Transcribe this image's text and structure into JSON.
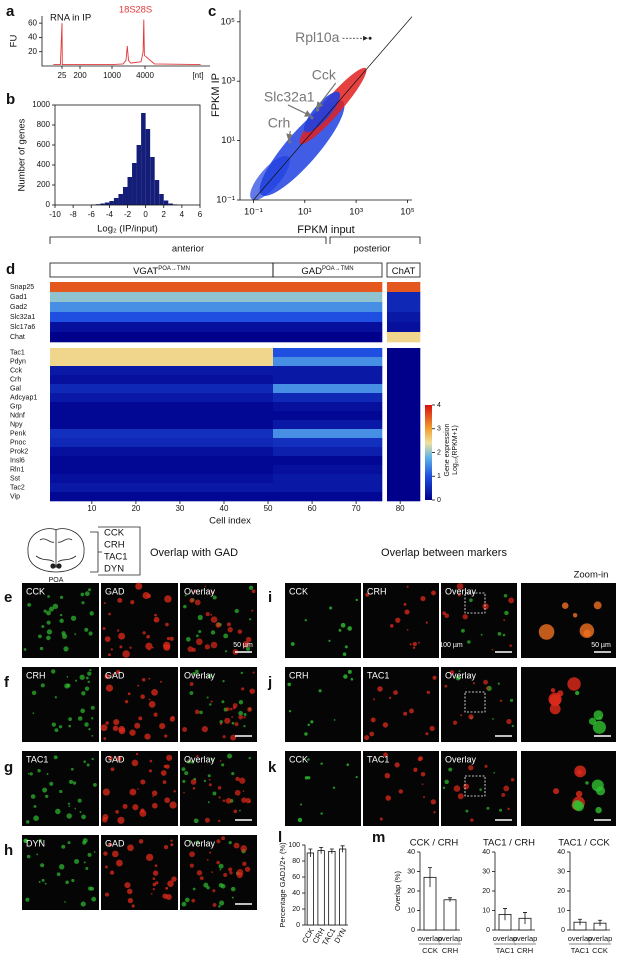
{
  "panel_labels": [
    "a",
    "b",
    "c",
    "d",
    "e",
    "f",
    "g",
    "h",
    "i",
    "j",
    "k",
    "l",
    "m"
  ],
  "chart_data": [
    {
      "type": "electropherogram",
      "title": "RNA in IP",
      "ylabel": "FU",
      "xunit": "[nt]",
      "color": "#e03a3a",
      "x": [
        20,
        24,
        25,
        26,
        30,
        200,
        1000,
        1600,
        1800,
        1900,
        2000,
        2200,
        3400,
        3700,
        3800,
        3900,
        4500,
        8000
      ],
      "values": [
        2,
        2,
        60,
        2,
        2,
        2,
        2,
        3,
        8,
        28,
        8,
        4,
        6,
        20,
        65,
        15,
        3,
        2
      ],
      "ylim": [
        0,
        70
      ],
      "yticks": [
        20,
        40,
        60
      ],
      "xlim": [
        15,
        9000
      ],
      "xticks": [
        25,
        200,
        1000,
        4000
      ],
      "peaks": [
        {
          "label": "18S",
          "x": 1900
        },
        {
          "label": "28S",
          "x": 3800
        }
      ]
    },
    {
      "type": "histogram",
      "ylabel": "Number of genes",
      "xlabel": "Log₂ (IP/input)",
      "color": "#141e78",
      "bins": [
        -6,
        -5.5,
        -5,
        -4.5,
        -4,
        -3.5,
        -3,
        -2.5,
        -2,
        -1.5,
        -1,
        -0.5,
        0,
        0.5,
        1,
        1.5,
        2,
        2.5,
        3,
        3.5,
        4
      ],
      "counts": [
        5,
        8,
        15,
        25,
        40,
        70,
        110,
        180,
        280,
        420,
        600,
        920,
        760,
        480,
        250,
        110,
        45,
        15,
        6,
        2
      ],
      "xlim": [
        -10,
        6
      ],
      "xticks": [
        -10,
        -8,
        -6,
        -4,
        -2,
        0,
        2,
        4,
        6
      ],
      "ylim": [
        0,
        1000
      ],
      "yticks": [
        0,
        200,
        400,
        600,
        800,
        1000
      ]
    },
    {
      "type": "scatter",
      "xlabel": "FPKM input",
      "ylabel": "FPKM IP",
      "xscale": "log",
      "yscale": "log",
      "diagonal": true,
      "xlim": [
        0.03,
        150000
      ],
      "ylim": [
        0.1,
        250000
      ],
      "xticks": [
        {
          "value": 0.1,
          "label": "10⁻¹"
        },
        {
          "value": 10,
          "label": "10¹"
        },
        {
          "value": 1000,
          "label": "10³"
        },
        {
          "value": 100000,
          "label": "10⁵"
        }
      ],
      "yticks": [
        {
          "value": 0.1,
          "label": "10⁻¹"
        },
        {
          "value": 10,
          "label": "10¹"
        },
        {
          "value": 1000,
          "label": "10³"
        },
        {
          "value": 100000,
          "label": "10⁵"
        }
      ],
      "points": [
        {
          "label": "Rpl10a",
          "x": 3500,
          "y": 28000
        },
        {
          "label": "Cck",
          "x": 32,
          "y": 107
        },
        {
          "label": "Slc32a1",
          "x": 19,
          "y": 58
        },
        {
          "label": "Crh",
          "x": 2.6,
          "y": 9
        }
      ]
    },
    {
      "type": "heatmap",
      "xlabel": "Cell index",
      "regions": [
        "anterior",
        "posterior"
      ],
      "groups": [
        {
          "name": "VGAT",
          "sup": "POA→TMN"
        },
        {
          "name": "GAD",
          "sup": "POA→TMN"
        },
        {
          "name": "ChAT"
        }
      ],
      "rows": [
        "Snap25",
        "Gad1",
        "Gad2",
        "Slc32a1",
        "Slc17a6",
        "Chat",
        "Tac1",
        "Pdyn",
        "Cck",
        "Crh",
        "Gal",
        "Adcyap1",
        "Grp",
        "Ndnf",
        "Npy",
        "Penk",
        "Pnoc",
        "Prok2",
        "Insl6",
        "Rln1",
        "Sst",
        "Tac2",
        "Vip"
      ],
      "values": [
        [
          3.5,
          3.5,
          3.5
        ],
        [
          2,
          2,
          0.5
        ],
        [
          1.5,
          1.5,
          0.5
        ],
        [
          1,
          1,
          0.3
        ],
        [
          0.2,
          0.2,
          0.2
        ],
        [
          0,
          0,
          2.5
        ],
        [
          2.5,
          1,
          0
        ],
        [
          2.5,
          1.5,
          0
        ],
        [
          0.3,
          0.3,
          0
        ],
        [
          0.2,
          0.3,
          0
        ],
        [
          0.5,
          1.5,
          0
        ],
        [
          0.3,
          0.5,
          0
        ],
        [
          0.1,
          0.2,
          0
        ],
        [
          0.1,
          0.1,
          0
        ],
        [
          0.1,
          0.3,
          0
        ],
        [
          0.6,
          1.5,
          0
        ],
        [
          0.5,
          0.6,
          0
        ],
        [
          0.2,
          0.4,
          0
        ],
        [
          0.1,
          0.1,
          0
        ],
        [
          0.1,
          0.2,
          0
        ],
        [
          0.2,
          0.3,
          0
        ],
        [
          0.3,
          0.3,
          0
        ],
        [
          0.1,
          0.1,
          0
        ]
      ],
      "xlim": [
        0.5,
        84.5
      ],
      "xticks": [
        10,
        20,
        30,
        40,
        50,
        60,
        70,
        80
      ],
      "clim": [
        0,
        4
      ],
      "cticks": [
        0,
        1,
        2,
        3,
        4
      ],
      "clabel": "Gene expression",
      "clabel2": "Log₁₀(RPKM+1)"
    },
    {
      "type": "bar",
      "ylabel": "Percentage GAD1/2+ (%)",
      "categories": [
        "CCK",
        "CRH",
        "TAC1",
        "DYN"
      ],
      "values": [
        90,
        93,
        92,
        95
      ],
      "errors": [
        5,
        4,
        3,
        4
      ],
      "ylim": [
        0,
        100
      ],
      "yticks": [
        0,
        20,
        40,
        60,
        80,
        100
      ]
    },
    {
      "type": "bar",
      "title": "CCK / CRH",
      "ylabel": "Overlap (%)",
      "category_note": "overlap",
      "categories": [
        "CCK",
        "CRH"
      ],
      "values": [
        27,
        15.5
      ],
      "errors": [
        5,
        1
      ],
      "ylim": [
        0,
        40
      ],
      "yticks": [
        0,
        10,
        20,
        30,
        40
      ]
    },
    {
      "type": "bar",
      "title": "TAC1 / CRH",
      "category_note": "overlap",
      "categories": [
        "TAC1",
        "CRH"
      ],
      "values": [
        8,
        6
      ],
      "errors": [
        3,
        3
      ],
      "ylim": [
        0,
        40
      ],
      "yticks": [
        0,
        10,
        20,
        30,
        40
      ]
    },
    {
      "type": "bar",
      "title": "TAC1 / CCK",
      "category_note": "overlap",
      "categories": [
        "TAC1",
        "CCK"
      ],
      "values": [
        4,
        3.5
      ],
      "errors": [
        1.5,
        1.5
      ],
      "ylim": [
        0,
        40
      ],
      "yticks": [
        0,
        10,
        20,
        30,
        40
      ]
    }
  ],
  "header": {
    "markers": [
      "CCK",
      "CRH",
      "TAC1",
      "DYN"
    ],
    "region": "POA",
    "left_title": "Overlap with GAD",
    "right_title": "Overlap between markers"
  },
  "images": [
    {
      "channels": [
        "CCK",
        "GAD",
        "Overlay"
      ],
      "scale": "50 µm"
    },
    {
      "channels": [
        "CRH",
        "GAD",
        "Overlay"
      ]
    },
    {
      "channels": [
        "TAC1",
        "GAD",
        "Overlay"
      ]
    },
    {
      "channels": [
        "DYN",
        "GAD",
        "Overlay"
      ]
    },
    {
      "channels": [
        "CCK",
        "CRH",
        "Overlay"
      ],
      "scale": "100 µm",
      "zoom_title": "Zoom-in",
      "zoom_scale": "50 µm"
    },
    {
      "channels": [
        "CRH",
        "TAC1",
        "Overlay"
      ]
    },
    {
      "channels": [
        "CCK",
        "TAC1",
        "Overlay"
      ]
    }
  ]
}
